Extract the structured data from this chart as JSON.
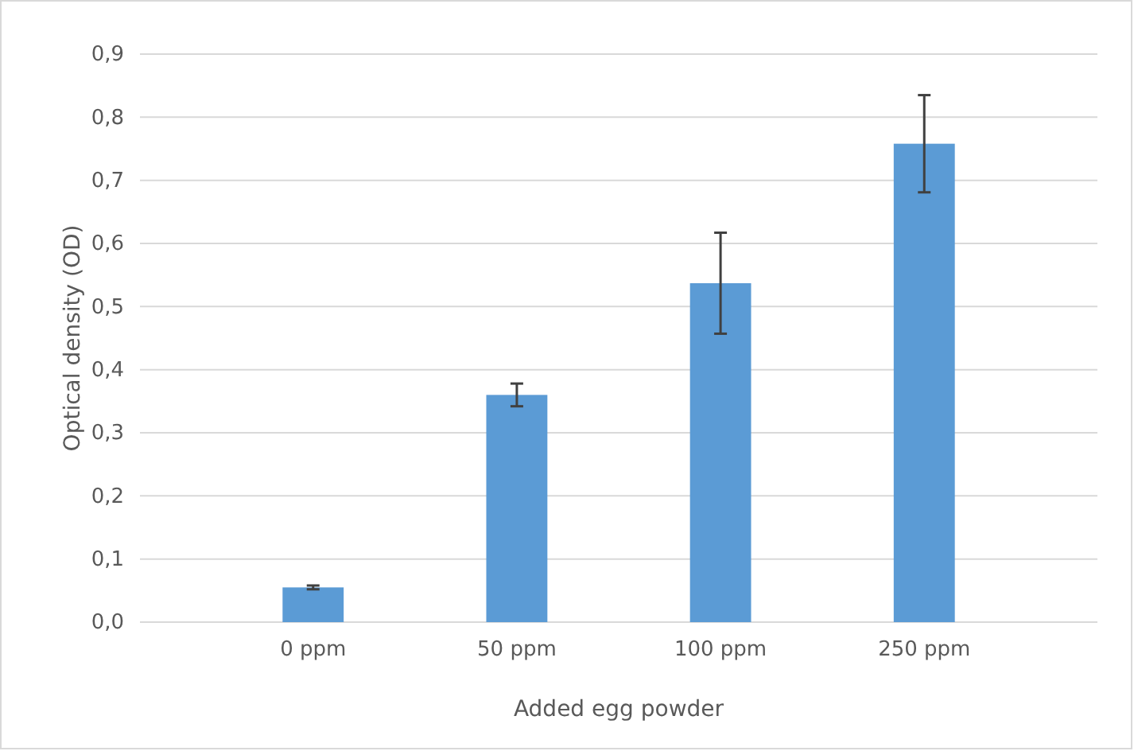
{
  "chart_data": {
    "type": "bar",
    "xlabel": "Added egg powder",
    "ylabel": "Optical density (OD)",
    "categories": [
      "0 ppm",
      "50 ppm",
      "100 ppm",
      "250 ppm"
    ],
    "values": [
      0.055,
      0.36,
      0.537,
      0.758
    ],
    "errors": [
      0.003,
      0.018,
      0.08,
      0.077
    ],
    "color": "#5b9bd5",
    "grid": "y",
    "ylim": [
      0,
      0.9
    ],
    "yticks": [
      {
        "value": 0,
        "label": "0,0"
      },
      {
        "value": 0.1,
        "label": "0,1"
      },
      {
        "value": 0.2,
        "label": "0,2"
      },
      {
        "value": 0.3,
        "label": "0,3"
      },
      {
        "value": 0.4,
        "label": "0,4"
      },
      {
        "value": 0.5,
        "label": "0,5"
      },
      {
        "value": 0.6,
        "label": "0,6"
      },
      {
        "value": 0.7,
        "label": "0,7"
      },
      {
        "value": 0.8,
        "label": "0,8"
      },
      {
        "value": 0.9,
        "label": "0,9"
      }
    ]
  }
}
